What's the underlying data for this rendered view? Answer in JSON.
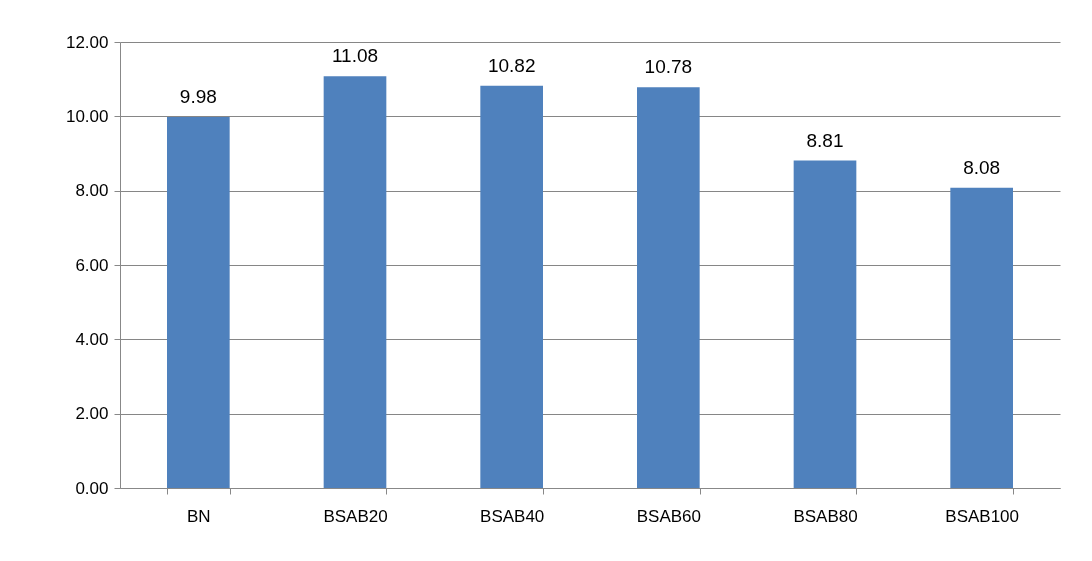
{
  "chart_data": {
    "type": "bar",
    "categories": [
      "BN",
      "BSAB20",
      "BSAB40",
      "BSAB60",
      "BSAB80",
      "BSAB100"
    ],
    "values": [
      9.98,
      11.08,
      10.82,
      10.78,
      8.81,
      8.08
    ],
    "color": "#4f81bd",
    "ylim": [
      0,
      12
    ],
    "yticks": [
      {
        "value": 0,
        "label": "0.00"
      },
      {
        "value": 2,
        "label": "2.00"
      },
      {
        "value": 4,
        "label": "4.00"
      },
      {
        "value": 6,
        "label": "6.00"
      },
      {
        "value": 8,
        "label": "8.00"
      },
      {
        "value": 10,
        "label": "10.00"
      },
      {
        "value": 12,
        "label": "12.00"
      }
    ],
    "grid": "y",
    "data_labels": true
  }
}
